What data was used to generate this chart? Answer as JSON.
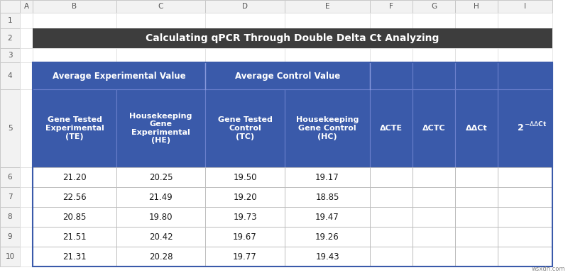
{
  "title": "Calculating qPCR Through Double Delta Ct Analyzing",
  "title_bg": "#3d3d3d",
  "title_color": "#ffffff",
  "header_bg": "#3a5aaa",
  "header_color": "#ffffff",
  "data_bg": "#ffffff",
  "data_color": "#222222",
  "excel_col_header_bg": "#f2f2f2",
  "excel_col_header_color": "#555555",
  "excel_border": "#c0c0c0",
  "col_letters": [
    "A",
    "B",
    "C",
    "D",
    "E",
    "F",
    "G",
    "H",
    "I"
  ],
  "row_numbers": [
    "1",
    "2",
    "3",
    "4",
    "5",
    "6",
    "7",
    "8",
    "9",
    "10"
  ],
  "span_header1_label": "Average Experimental Value",
  "span_header2_label": "Average Control Value",
  "col_headers": [
    "Gene Tested\nExperimental\n(TE)",
    "Housekeeping\nGene\nExperimental\n(HE)",
    "Gene Tested\nControl\n(TC)",
    "Housekeeping\nGene Control\n(HC)",
    "ΔCTE",
    "ΔCTC",
    "ΔΔCt",
    "2⁻ΔΔCt"
  ],
  "data_rows": [
    [
      "21.20",
      "20.25",
      "19.50",
      "19.17",
      "",
      "",
      "",
      ""
    ],
    [
      "22.56",
      "21.49",
      "19.20",
      "18.85",
      "",
      "",
      "",
      ""
    ],
    [
      "20.85",
      "19.80",
      "19.73",
      "19.47",
      "",
      "",
      "",
      ""
    ],
    [
      "21.51",
      "20.42",
      "19.67",
      "19.26",
      "",
      "",
      "",
      ""
    ],
    [
      "21.31",
      "20.28",
      "19.77",
      "19.43",
      "",
      "",
      "",
      ""
    ]
  ],
  "watermark": "wsxdn.com",
  "fig_w": 8.0,
  "fig_h": 3.88,
  "dpi": 100
}
